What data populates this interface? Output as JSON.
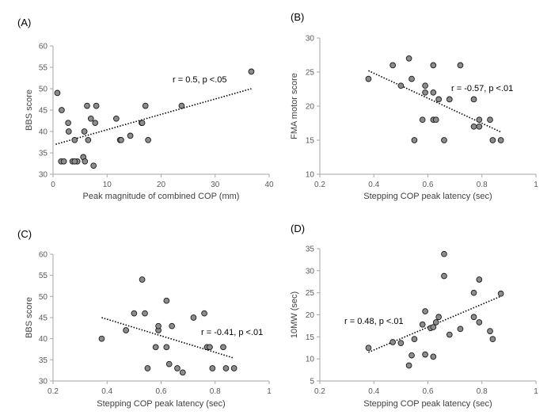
{
  "chart_data": [
    {
      "type": "scatter",
      "panel_label": "(A)",
      "xlabel": "Peak magnitude of combined COP (mm)",
      "ylabel": "BBS score",
      "xlim": [
        0,
        40
      ],
      "ylim": [
        30,
        60
      ],
      "xticks": [
        0,
        10,
        20,
        30,
        40
      ],
      "yticks": [
        30,
        35,
        40,
        45,
        50,
        55,
        60
      ],
      "xtick_labels": [
        "0",
        "10",
        "20",
        "30",
        "40"
      ],
      "ytick_labels": [
        "30",
        "35",
        "40",
        "45",
        "50",
        "55",
        "60"
      ],
      "annotation": "r = 0.5, p <.05",
      "trendline": [
        [
          0.5,
          37
        ],
        [
          36.7,
          50
        ]
      ],
      "points": [
        [
          0.8,
          49
        ],
        [
          1.6,
          45
        ],
        [
          1.5,
          33
        ],
        [
          2.0,
          33
        ],
        [
          2.8,
          42
        ],
        [
          2.9,
          40
        ],
        [
          3.6,
          33
        ],
        [
          4.0,
          38
        ],
        [
          4.5,
          33
        ],
        [
          4.0,
          33
        ],
        [
          5.8,
          40
        ],
        [
          5.6,
          34
        ],
        [
          5.9,
          33
        ],
        [
          6.3,
          46
        ],
        [
          6.5,
          38
        ],
        [
          7.0,
          43
        ],
        [
          7.5,
          32
        ],
        [
          7.8,
          42
        ],
        [
          8.0,
          46
        ],
        [
          11.7,
          43
        ],
        [
          12.4,
          38
        ],
        [
          12.6,
          38
        ],
        [
          14.3,
          39
        ],
        [
          16.4,
          42
        ],
        [
          16.5,
          42
        ],
        [
          17.1,
          46
        ],
        [
          17.6,
          38
        ],
        [
          23.8,
          46
        ],
        [
          36.7,
          54
        ]
      ]
    },
    {
      "type": "scatter",
      "panel_label": "(B)",
      "xlabel": "Stepping COP peak latency (sec)",
      "ylabel": "FMA motor score",
      "xlim": [
        0.2,
        1
      ],
      "ylim": [
        10,
        30
      ],
      "xticks": [
        0.2,
        0.4,
        0.6,
        0.8,
        1
      ],
      "yticks": [
        10,
        15,
        20,
        25,
        30
      ],
      "xtick_labels": [
        "0.2",
        "0.4",
        "0.6",
        "0.8",
        "1"
      ],
      "ytick_labels": [
        "10",
        "15",
        "20",
        "25",
        "30"
      ],
      "annotation": "r = -0.57, p <.01",
      "trendline": [
        [
          0.38,
          25.2
        ],
        [
          0.87,
          16.2
        ]
      ],
      "points": [
        [
          0.38,
          24
        ],
        [
          0.47,
          26
        ],
        [
          0.5,
          23
        ],
        [
          0.53,
          27
        ],
        [
          0.54,
          24
        ],
        [
          0.55,
          15
        ],
        [
          0.58,
          18
        ],
        [
          0.59,
          22
        ],
        [
          0.59,
          23
        ],
        [
          0.62,
          18
        ],
        [
          0.62,
          22
        ],
        [
          0.62,
          26
        ],
        [
          0.63,
          18
        ],
        [
          0.64,
          21
        ],
        [
          0.66,
          15
        ],
        [
          0.68,
          21
        ],
        [
          0.72,
          26
        ],
        [
          0.77,
          21
        ],
        [
          0.77,
          17
        ],
        [
          0.79,
          17
        ],
        [
          0.79,
          18
        ],
        [
          0.83,
          18
        ],
        [
          0.84,
          15
        ],
        [
          0.87,
          15
        ]
      ]
    },
    {
      "type": "scatter",
      "panel_label": "(C)",
      "xlabel": "Stepping COP peak latency (sec)",
      "ylabel": "BBS score",
      "xlim": [
        0.2,
        1
      ],
      "ylim": [
        30,
        60
      ],
      "xticks": [
        0.2,
        0.4,
        0.6,
        0.8,
        1
      ],
      "yticks": [
        30,
        35,
        40,
        45,
        50,
        55,
        60
      ],
      "xtick_labels": [
        "0.2",
        "0.4",
        "0.6",
        "0.8",
        "1"
      ],
      "ytick_labels": [
        "30",
        "35",
        "40",
        "45",
        "50",
        "55",
        "60"
      ],
      "annotation": "r = -0.41, p <.01",
      "trendline": [
        [
          0.38,
          45
        ],
        [
          0.87,
          35.4
        ]
      ],
      "points": [
        [
          0.38,
          40
        ],
        [
          0.47,
          42
        ],
        [
          0.5,
          46
        ],
        [
          0.53,
          54
        ],
        [
          0.54,
          46
        ],
        [
          0.55,
          33
        ],
        [
          0.58,
          38
        ],
        [
          0.59,
          42
        ],
        [
          0.59,
          43
        ],
        [
          0.62,
          38
        ],
        [
          0.62,
          49
        ],
        [
          0.63,
          34
        ],
        [
          0.64,
          43
        ],
        [
          0.66,
          33
        ],
        [
          0.68,
          32
        ],
        [
          0.72,
          45
        ],
        [
          0.76,
          46
        ],
        [
          0.77,
          38
        ],
        [
          0.78,
          38
        ],
        [
          0.79,
          33
        ],
        [
          0.83,
          38
        ],
        [
          0.84,
          33
        ],
        [
          0.87,
          33
        ]
      ]
    },
    {
      "type": "scatter",
      "panel_label": "(D)",
      "xlabel": "Stepping COP peak latency (sec)",
      "ylabel": "10MW (sec)",
      "xlim": [
        0.2,
        1
      ],
      "ylim": [
        5,
        35
      ],
      "xticks": [
        0.2,
        0.4,
        0.6,
        0.8,
        1
      ],
      "yticks": [
        5,
        10,
        15,
        20,
        25,
        30,
        35
      ],
      "xtick_labels": [
        "0.2",
        "0.4",
        "0.6",
        "0.8",
        "1"
      ],
      "ytick_labels": [
        "5",
        "10",
        "15",
        "20",
        "25",
        "30",
        "35"
      ],
      "annotation": "r = 0.48, p <.01",
      "trendline": [
        [
          0.38,
          11.5
        ],
        [
          0.87,
          24.2
        ]
      ],
      "points": [
        [
          0.38,
          12.5
        ],
        [
          0.47,
          13.8
        ],
        [
          0.5,
          13.6
        ],
        [
          0.53,
          8.5
        ],
        [
          0.54,
          10.8
        ],
        [
          0.55,
          14.5
        ],
        [
          0.58,
          17.8
        ],
        [
          0.59,
          20.8
        ],
        [
          0.59,
          11.0
        ],
        [
          0.61,
          17.0
        ],
        [
          0.62,
          10.5
        ],
        [
          0.62,
          17.2
        ],
        [
          0.63,
          18.3
        ],
        [
          0.64,
          19.5
        ],
        [
          0.66,
          28.8
        ],
        [
          0.66,
          33.8
        ],
        [
          0.68,
          15.5
        ],
        [
          0.72,
          16.8
        ],
        [
          0.77,
          25.0
        ],
        [
          0.77,
          19.5
        ],
        [
          0.79,
          28.0
        ],
        [
          0.79,
          18.3
        ],
        [
          0.83,
          16.3
        ],
        [
          0.84,
          14.5
        ],
        [
          0.87,
          24.8
        ]
      ]
    }
  ]
}
